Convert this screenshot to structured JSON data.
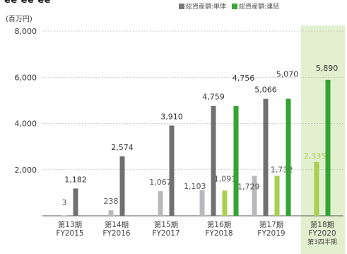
{
  "header": {
    "title_fragment": "ee ee ee",
    "unit": "(百万円)"
  },
  "legend": [
    {
      "label": "総資産額:単体",
      "color": "#7a7a7a"
    },
    {
      "label": "総資産額:連結",
      "color": "#3aa835"
    }
  ],
  "colors": {
    "single_past": "#707070",
    "single_latest": "#b8b8bc",
    "consolidated_past": "#34a331",
    "consolidated_latest": "#a8cf4f",
    "highlight_band": "#e3f0cf",
    "grid": "#bbbbbb",
    "axis": "#555555"
  },
  "chart_data": {
    "type": "bar",
    "ylabel": "(百万円)",
    "ylim": [
      0,
      8000
    ],
    "yticks": [
      2000,
      4000,
      6000,
      8000
    ],
    "ytick_labels": [
      "2,000",
      "4,000",
      "6,000",
      "8,000"
    ],
    "grid": true,
    "legend_position": "top-right",
    "categories": [
      {
        "line1": "第13期",
        "line2": "FY2015",
        "line3": ""
      },
      {
        "line1": "第14期",
        "line2": "FY2016",
        "line3": ""
      },
      {
        "line1": "第15期",
        "line2": "FY2017",
        "line3": ""
      },
      {
        "line1": "第16期",
        "line2": "FY2018",
        "line3": ""
      },
      {
        "line1": "第17期",
        "line2": "FY2019",
        "line3": ""
      },
      {
        "line1": "第18期",
        "line2": "FY2020",
        "line3": "第3四半期"
      }
    ],
    "highlight_category": 5,
    "groups": [
      {
        "bars": [
          {
            "series": "総資産額:単体",
            "period": "latest",
            "value": 3,
            "label": "3"
          },
          {
            "series": "総資産額:単体",
            "period": "year_end",
            "value": 1182,
            "label": "1,182"
          }
        ]
      },
      {
        "bars": [
          {
            "series": "総資産額:単体",
            "period": "latest",
            "value": 238,
            "label": "238"
          },
          {
            "series": "総資産額:単体",
            "period": "year_end",
            "value": 2574,
            "label": "2,574"
          }
        ]
      },
      {
        "bars": [
          {
            "series": "総資産額:単体",
            "period": "latest",
            "value": 1067,
            "label": "1,067"
          },
          {
            "series": "総資産額:単体",
            "period": "year_end",
            "value": 3910,
            "label": "3,910"
          }
        ]
      },
      {
        "bars": [
          {
            "series": "総資産額:単体",
            "period": "latest",
            "value": 1103,
            "label": "1,103"
          },
          {
            "series": "総資産額:単体",
            "period": "year_end",
            "value": 4759,
            "label": "4,759"
          },
          {
            "series": "総資産額:連結",
            "period": "latest",
            "value": 1091,
            "label": "1,091"
          },
          {
            "series": "総資産額:連結",
            "period": "year_end",
            "value": 4756,
            "label": "4,756"
          }
        ]
      },
      {
        "bars": [
          {
            "series": "総資産額:単体",
            "period": "latest",
            "value": 1729,
            "label": "1,729"
          },
          {
            "series": "総資産額:単体",
            "period": "year_end",
            "value": 5066,
            "label": "5,066"
          },
          {
            "series": "総資産額:連結",
            "period": "latest",
            "value": 1732,
            "label": "1,732"
          },
          {
            "series": "総資産額:連結",
            "period": "year_end",
            "value": 5070,
            "label": "5,070"
          }
        ]
      },
      {
        "bars": [
          {
            "series": "総資産額:連結",
            "period": "latest",
            "value": 2335,
            "label": "2,335"
          },
          {
            "series": "総資産額:連結",
            "period": "year_end",
            "value": 5890,
            "label": "5,890"
          }
        ]
      }
    ]
  }
}
